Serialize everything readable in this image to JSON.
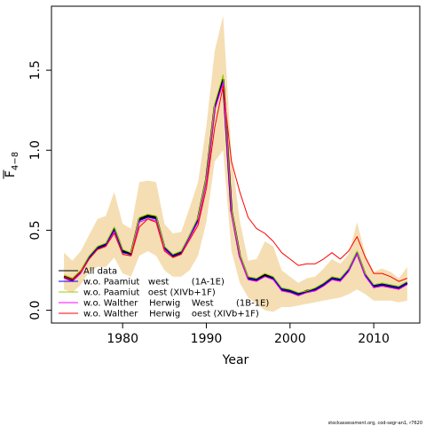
{
  "chart_data": {
    "type": "line",
    "title": "",
    "xlabel": "Year",
    "ylabel_main": "F",
    "ylabel_sub": "4−8",
    "xlim": [
      1971.5,
      2015.5
    ],
    "ylim": [
      -0.08,
      1.9
    ],
    "x_ticks": [
      1980,
      1990,
      2000,
      2010
    ],
    "y_ticks": [
      0.0,
      0.5,
      1.0,
      1.5
    ],
    "y_tick_labels": [
      "0.0",
      "0.5",
      "1.0",
      "1.5"
    ],
    "grid": false,
    "legend_position": "bottom-left",
    "band": {
      "color": "#f5deb3",
      "x": [
        1973,
        1974,
        1975,
        1976,
        1977,
        1978,
        1979,
        1980,
        1981,
        1982,
        1983,
        1984,
        1985,
        1986,
        1987,
        1988,
        1989,
        1990,
        1991,
        1992,
        1993,
        1994,
        1995,
        1996,
        1997,
        1998,
        1999,
        2000,
        2001,
        2002,
        2003,
        2004,
        2005,
        2006,
        2007,
        2008,
        2009,
        2010,
        2011,
        2012,
        2013,
        2014
      ],
      "lower": [
        0.13,
        0.11,
        0.16,
        0.24,
        0.27,
        0.27,
        0.33,
        0.23,
        0.21,
        0.34,
        0.37,
        0.34,
        0.25,
        0.21,
        0.21,
        0.25,
        0.34,
        0.55,
        0.93,
        1.0,
        0.37,
        0.17,
        0.08,
        0.04,
        0.0,
        -0.01,
        0.02,
        0.02,
        0.03,
        0.04,
        0.05,
        0.06,
        0.07,
        0.08,
        0.1,
        0.13,
        0.1,
        0.06,
        0.06,
        0.06,
        0.05,
        0.06
      ],
      "upper": [
        0.36,
        0.31,
        0.37,
        0.47,
        0.57,
        0.59,
        0.74,
        0.54,
        0.51,
        0.8,
        0.81,
        0.8,
        0.54,
        0.48,
        0.49,
        0.64,
        0.8,
        1.15,
        1.62,
        1.84,
        0.97,
        0.56,
        0.31,
        0.32,
        0.43,
        0.4,
        0.25,
        0.21,
        0.17,
        0.2,
        0.21,
        0.26,
        0.32,
        0.29,
        0.35,
        0.55,
        0.35,
        0.24,
        0.26,
        0.24,
        0.2,
        0.27
      ]
    },
    "x": [
      1973,
      1974,
      1975,
      1976,
      1977,
      1978,
      1979,
      1980,
      1981,
      1982,
      1983,
      1984,
      1985,
      1986,
      1987,
      1988,
      1989,
      1990,
      1991,
      1992,
      1993,
      1994,
      1995,
      1996,
      1997,
      1998,
      1999,
      2000,
      2001,
      2002,
      2003,
      2004,
      2005,
      2006,
      2007,
      2008,
      2009,
      2010,
      2011,
      2012,
      2013,
      2014
    ],
    "series": [
      {
        "name": "All data",
        "color": "#000000",
        "width": 2.5,
        "values": [
          0.21,
          0.19,
          0.24,
          0.33,
          0.39,
          0.41,
          0.51,
          0.37,
          0.35,
          0.57,
          0.59,
          0.58,
          0.39,
          0.34,
          0.36,
          0.46,
          0.57,
          0.82,
          1.27,
          1.44,
          0.62,
          0.34,
          0.2,
          0.19,
          0.22,
          0.2,
          0.13,
          0.12,
          0.1,
          0.12,
          0.13,
          0.16,
          0.2,
          0.19,
          0.25,
          0.36,
          0.22,
          0.15,
          0.16,
          0.15,
          0.14,
          0.17
        ]
      },
      {
        "name": "w.o. Paamiut   west        (1A-1E)",
        "color": "#0000ff",
        "width": 1,
        "values": [
          0.21,
          0.19,
          0.24,
          0.33,
          0.39,
          0.41,
          0.5,
          0.36,
          0.35,
          0.56,
          0.58,
          0.57,
          0.39,
          0.34,
          0.36,
          0.46,
          0.56,
          0.81,
          1.26,
          1.43,
          0.61,
          0.33,
          0.2,
          0.19,
          0.21,
          0.2,
          0.13,
          0.12,
          0.1,
          0.11,
          0.13,
          0.16,
          0.2,
          0.19,
          0.25,
          0.36,
          0.22,
          0.15,
          0.16,
          0.15,
          0.14,
          0.17
        ]
      },
      {
        "name": "w.o. Paamiut   oest (XIVb+1F)",
        "color": "#99cc00",
        "width": 1,
        "values": [
          0.22,
          0.2,
          0.25,
          0.34,
          0.4,
          0.42,
          0.52,
          0.38,
          0.36,
          0.58,
          0.6,
          0.59,
          0.4,
          0.35,
          0.37,
          0.47,
          0.58,
          0.83,
          1.29,
          1.47,
          0.63,
          0.35,
          0.21,
          0.2,
          0.23,
          0.21,
          0.14,
          0.13,
          0.11,
          0.12,
          0.14,
          0.17,
          0.21,
          0.2,
          0.26,
          0.37,
          0.23,
          0.16,
          0.17,
          0.16,
          0.15,
          0.18
        ]
      },
      {
        "name": "w.o. Walther    Herwig    West        (1B-1E)",
        "color": "#ff00ff",
        "width": 1,
        "values": [
          0.2,
          0.18,
          0.23,
          0.32,
          0.38,
          0.4,
          0.49,
          0.35,
          0.34,
          0.55,
          0.57,
          0.56,
          0.38,
          0.33,
          0.35,
          0.45,
          0.55,
          0.8,
          1.25,
          1.42,
          0.6,
          0.33,
          0.19,
          0.18,
          0.21,
          0.19,
          0.12,
          0.11,
          0.09,
          0.11,
          0.12,
          0.15,
          0.19,
          0.18,
          0.24,
          0.35,
          0.21,
          0.14,
          0.15,
          0.14,
          0.13,
          0.16
        ]
      },
      {
        "name": "w.o. Walther    Herwig    oest (XIVb+1F)",
        "color": "#ff0000",
        "width": 1,
        "values": [
          0.21,
          0.19,
          0.24,
          0.32,
          0.38,
          0.4,
          0.48,
          0.35,
          0.34,
          0.52,
          0.57,
          0.55,
          0.37,
          0.33,
          0.35,
          0.44,
          0.53,
          0.76,
          1.14,
          1.4,
          0.93,
          0.74,
          0.58,
          0.51,
          0.48,
          0.43,
          0.36,
          0.32,
          0.28,
          0.29,
          0.29,
          0.32,
          0.36,
          0.32,
          0.37,
          0.46,
          0.33,
          0.23,
          0.23,
          0.21,
          0.18,
          0.2
        ]
      }
    ]
  },
  "footer": "stockassessment.org, cod-segr-an1, r7620"
}
